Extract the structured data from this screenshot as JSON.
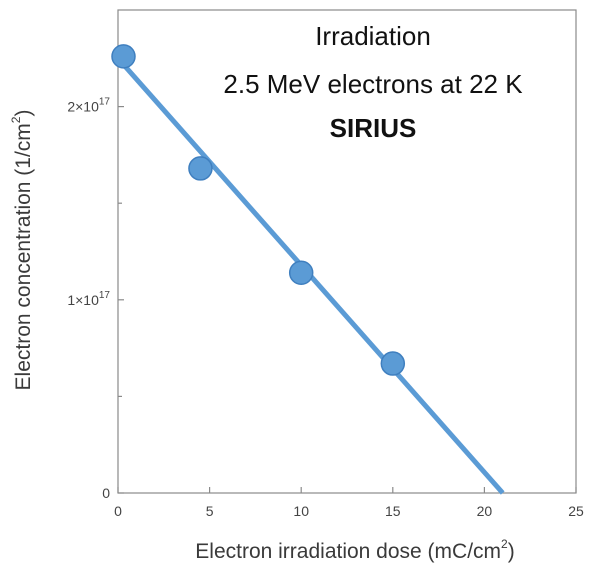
{
  "chart_data": {
    "type": "scatter",
    "xlabel": "Electron irradiation dose (mC/cm",
    "xlabel_sup": "2",
    "xlabel_tail": ")",
    "ylabel": "Electron concentration (1/cm",
    "ylabel_sup": "2",
    "ylabel_tail": ")",
    "xlim": [
      0,
      25
    ],
    "ylim": [
      0,
      2.5e+17
    ],
    "x_ticks": [
      {
        "value": 0,
        "label": "0"
      },
      {
        "value": 5,
        "label": "5"
      },
      {
        "value": 10,
        "label": "10"
      },
      {
        "value": 15,
        "label": "15"
      },
      {
        "value": 20,
        "label": "20"
      },
      {
        "value": 25,
        "label": "25"
      }
    ],
    "y_ticks": [
      {
        "value": 0,
        "label": "0",
        "sup": ""
      },
      {
        "value": 1e+17,
        "label": "1×10",
        "sup": "17"
      },
      {
        "value": 2e+17,
        "label": "2×10",
        "sup": "17"
      }
    ],
    "y_minor_ticks": [
      5e+16,
      1.5e+17
    ],
    "series": [
      {
        "points": [
          {
            "x": 0.3,
            "y": 2.26e+17
          },
          {
            "x": 4.5,
            "y": 1.68e+17
          },
          {
            "x": 10.0,
            "y": 1.14e+17
          },
          {
            "x": 15.0,
            "y": 6.7e+16
          }
        ],
        "color": "#5b9bd5",
        "edge_color": "#3f7fbf"
      }
    ],
    "fit_line": {
      "x": [
        0,
        21
      ],
      "y": [
        2.25e+17,
        0
      ],
      "color": "#5b9bd5"
    },
    "annotation": {
      "line1": "Irradiation",
      "line2": "2.5 MeV electrons at 22 K",
      "line3": "SIRIUS"
    },
    "grid": false,
    "legend": "none"
  }
}
